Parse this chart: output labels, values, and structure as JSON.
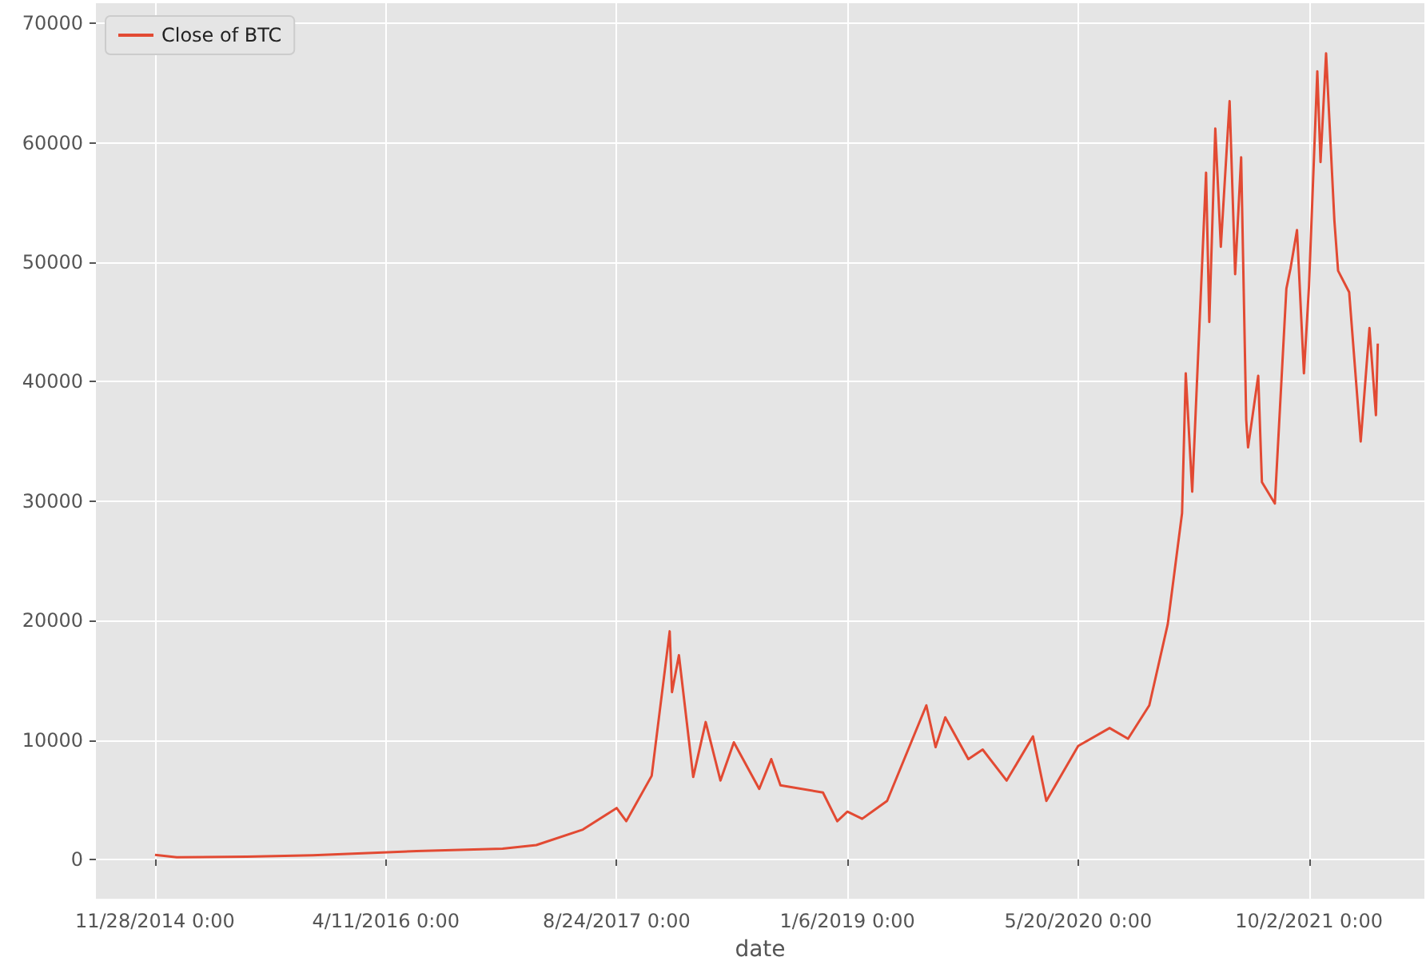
{
  "chart_data": {
    "type": "line",
    "xlabel": "date",
    "legend": "top left",
    "grid": true,
    "marker": "none",
    "line_style": "solid",
    "xlim": [
      "2014-07-23",
      "2022-06-09"
    ],
    "xticks": [
      {
        "value": "2014-11-28",
        "label": "11/28/2014 0:00"
      },
      {
        "value": "2016-04-11",
        "label": "4/11/2016 0:00"
      },
      {
        "value": "2017-08-24",
        "label": "8/24/2017 0:00"
      },
      {
        "value": "2019-01-06",
        "label": "1/6/2019 0:00"
      },
      {
        "value": "2020-05-20",
        "label": "5/20/2020 0:00"
      },
      {
        "value": "2021-10-02",
        "label": "10/2/2021 0:00"
      }
    ],
    "ylim": [
      -3300,
      71700
    ],
    "yticks": [
      0,
      10000,
      20000,
      30000,
      40000,
      50000,
      60000,
      70000
    ],
    "series": [
      {
        "name": "Close of BTC",
        "color": "#e24a33",
        "x": [
          "2014-11-28",
          "2015-01-14",
          "2015-06-15",
          "2015-11-05",
          "2016-06-17",
          "2016-12-20",
          "2017-03-03",
          "2017-06-12",
          "2017-08-24",
          "2017-09-14",
          "2017-11-08",
          "2017-12-17",
          "2017-12-22",
          "2018-01-06",
          "2018-02-06",
          "2018-03-05",
          "2018-04-06",
          "2018-05-05",
          "2018-06-29",
          "2018-07-25",
          "2018-08-14",
          "2018-11-14",
          "2018-12-15",
          "2019-01-06",
          "2019-02-07",
          "2019-04-02",
          "2019-06-26",
          "2019-07-16",
          "2019-08-06",
          "2019-09-25",
          "2019-10-26",
          "2019-12-17",
          "2020-02-12",
          "2020-03-12",
          "2020-05-20",
          "2020-07-27",
          "2020-09-05",
          "2020-10-21",
          "2020-11-30",
          "2020-12-31",
          "2021-01-08",
          "2021-01-22",
          "2021-02-21",
          "2021-02-28",
          "2021-03-13",
          "2021-03-25",
          "2021-04-13",
          "2021-04-25",
          "2021-05-08",
          "2021-05-19",
          "2021-05-23",
          "2021-06-14",
          "2021-06-22",
          "2021-07-20",
          "2021-08-14",
          "2021-08-23",
          "2021-09-06",
          "2021-09-21",
          "2021-10-02",
          "2021-10-20",
          "2021-10-27",
          "2021-11-08",
          "2021-11-26",
          "2021-12-04",
          "2021-12-28",
          "2022-01-22",
          "2022-02-10",
          "2022-02-24",
          "2022-02-28"
        ],
        "values": [
          375,
          180,
          230,
          350,
          700,
          900,
          1200,
          2500,
          4300,
          3200,
          7000,
          19100,
          14000,
          17100,
          6900,
          11500,
          6600,
          9800,
          5900,
          8400,
          6200,
          5600,
          3200,
          4000,
          3400,
          4900,
          12900,
          9400,
          11900,
          8400,
          9200,
          6600,
          10300,
          4900,
          9500,
          11000,
          10100,
          12900,
          19700,
          29000,
          40700,
          30800,
          57500,
          45000,
          61200,
          51300,
          63500,
          49000,
          58800,
          36800,
          34500,
          40500,
          31600,
          29800,
          47800,
          49500,
          52700,
          40700,
          48000,
          66000,
          58400,
          67500,
          53500,
          49300,
          47500,
          35000,
          44500,
          37200,
          43200
        ]
      }
    ]
  }
}
